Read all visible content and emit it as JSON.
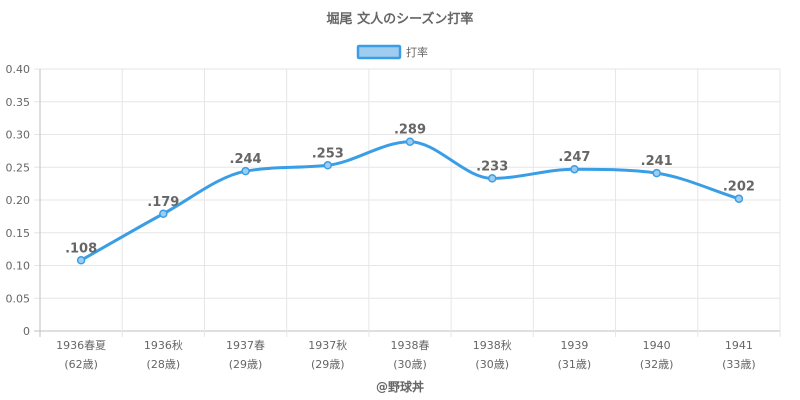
{
  "chart_data": {
    "type": "line",
    "title": "堀尾 文人のシーズン打率",
    "legend": {
      "label": "打率",
      "placement": "top"
    },
    "categories": [
      [
        "1936春夏",
        "(62歳)"
      ],
      [
        "1936秋",
        "(28歳)"
      ],
      [
        "1937春",
        "(29歳)"
      ],
      [
        "1937秋",
        "(29歳)"
      ],
      [
        "1938春",
        "(30歳)"
      ],
      [
        "1938秋",
        "(30歳)"
      ],
      [
        "1939",
        "(31歳)"
      ],
      [
        "1940",
        "(32歳)"
      ],
      [
        "1941",
        "(33歳)"
      ]
    ],
    "series": [
      {
        "name": "打率",
        "values": [
          0.108,
          0.179,
          0.244,
          0.253,
          0.289,
          0.233,
          0.247,
          0.241,
          0.202
        ]
      }
    ],
    "data_labels": [
      ".108",
      ".179",
      ".244",
      ".253",
      ".289",
      ".233",
      ".247",
      ".241",
      ".202"
    ],
    "y_ticks": [
      "0",
      "0.05",
      "0.10",
      "0.15",
      "0.20",
      "0.25",
      "0.30",
      "0.35",
      "0.40"
    ],
    "ylim": [
      0,
      0.4
    ],
    "grid": true,
    "colors": {
      "line": "#3a9ee6",
      "fill": "#9fcdf0",
      "grid": "#e6e6e6",
      "text": "#666666"
    },
    "credit": "@野球丼"
  }
}
